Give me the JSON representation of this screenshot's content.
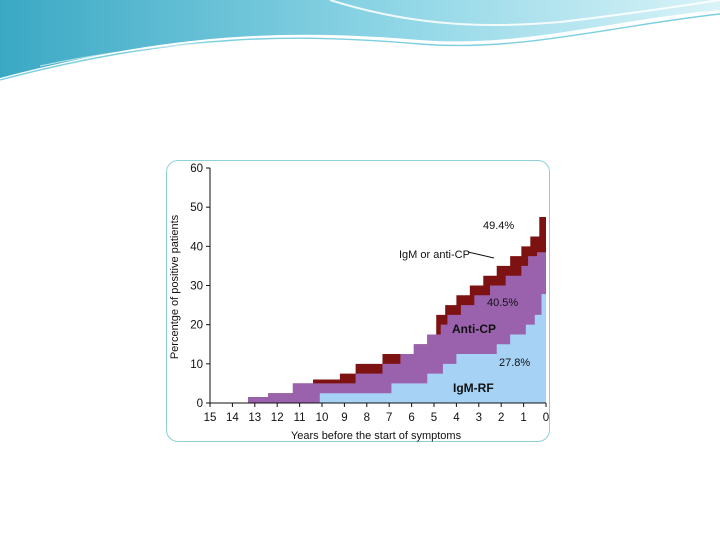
{
  "colors": {
    "igm_rf": "#a6d2f5",
    "anti_cp": "#9a62ad",
    "igm_or_anti_cp": "#7d1212",
    "frame": "#8fd0d6",
    "wave": "#4fb8cf"
  },
  "chart_data": {
    "type": "area",
    "xlabel": "Years before the start of symptoms",
    "ylabel": "Percentge of positive patients",
    "xlim": [
      15,
      0
    ],
    "ylim": [
      0,
      60
    ],
    "x_ticks": [
      "15",
      "14",
      "13",
      "12",
      "11",
      "10",
      "9",
      "8",
      "7",
      "6",
      "5",
      "4",
      "3",
      "2",
      "1",
      "0"
    ],
    "y_ticks": [
      "0",
      "10",
      "20",
      "30",
      "40",
      "50",
      "60"
    ],
    "grid": false,
    "series": [
      {
        "key": "igm_rf",
        "name": "IgM-RF",
        "x": [
          10.6,
          10.1,
          8.5,
          6.9,
          6.1,
          5.3,
          4.6,
          4.0,
          3.0,
          2.2,
          1.6,
          0.9,
          0.5,
          0.2,
          0.0
        ],
        "values": [
          0,
          2.5,
          2.5,
          5,
          5,
          7.5,
          10,
          12.5,
          12.5,
          15,
          17.5,
          20,
          22.5,
          27.8,
          27.8
        ],
        "label": "IgM-RF",
        "end_label": "27.8%"
      },
      {
        "key": "anti_cp",
        "name": "Anti-CP",
        "x": [
          14.1,
          13.3,
          12.4,
          11.3,
          10.0,
          8.5,
          7.3,
          6.5,
          5.9,
          5.3,
          4.7,
          4.4,
          3.8,
          3.2,
          2.5,
          1.8,
          1.1,
          0.8,
          0.4,
          0.0
        ],
        "values": [
          0,
          1.5,
          2.5,
          5,
          5,
          7.5,
          10,
          12.5,
          15,
          17.5,
          20,
          22.5,
          25,
          27.5,
          30,
          32.5,
          35,
          37.5,
          38.5,
          40.5
        ],
        "label": "Anti-CP",
        "end_label": "40.5%"
      },
      {
        "key": "igm_or_anti_cp",
        "name": "IgM or anti-CP",
        "x": [
          14.1,
          13.3,
          12.4,
          11.3,
          10.4,
          9.2,
          8.5,
          7.3,
          6.5,
          5.9,
          5.3,
          4.9,
          4.5,
          4.0,
          3.4,
          2.8,
          2.2,
          1.6,
          1.1,
          0.7,
          0.3,
          0.0
        ],
        "values": [
          0,
          1.5,
          2.5,
          5,
          6,
          7.5,
          10,
          12.5,
          12.5,
          15,
          17.5,
          22.5,
          25,
          27.5,
          30,
          32.5,
          35,
          37.5,
          40,
          42.5,
          47.5,
          49.4
        ],
        "label": "IgM or anti-CP",
        "end_label": "49.4%"
      }
    ]
  }
}
